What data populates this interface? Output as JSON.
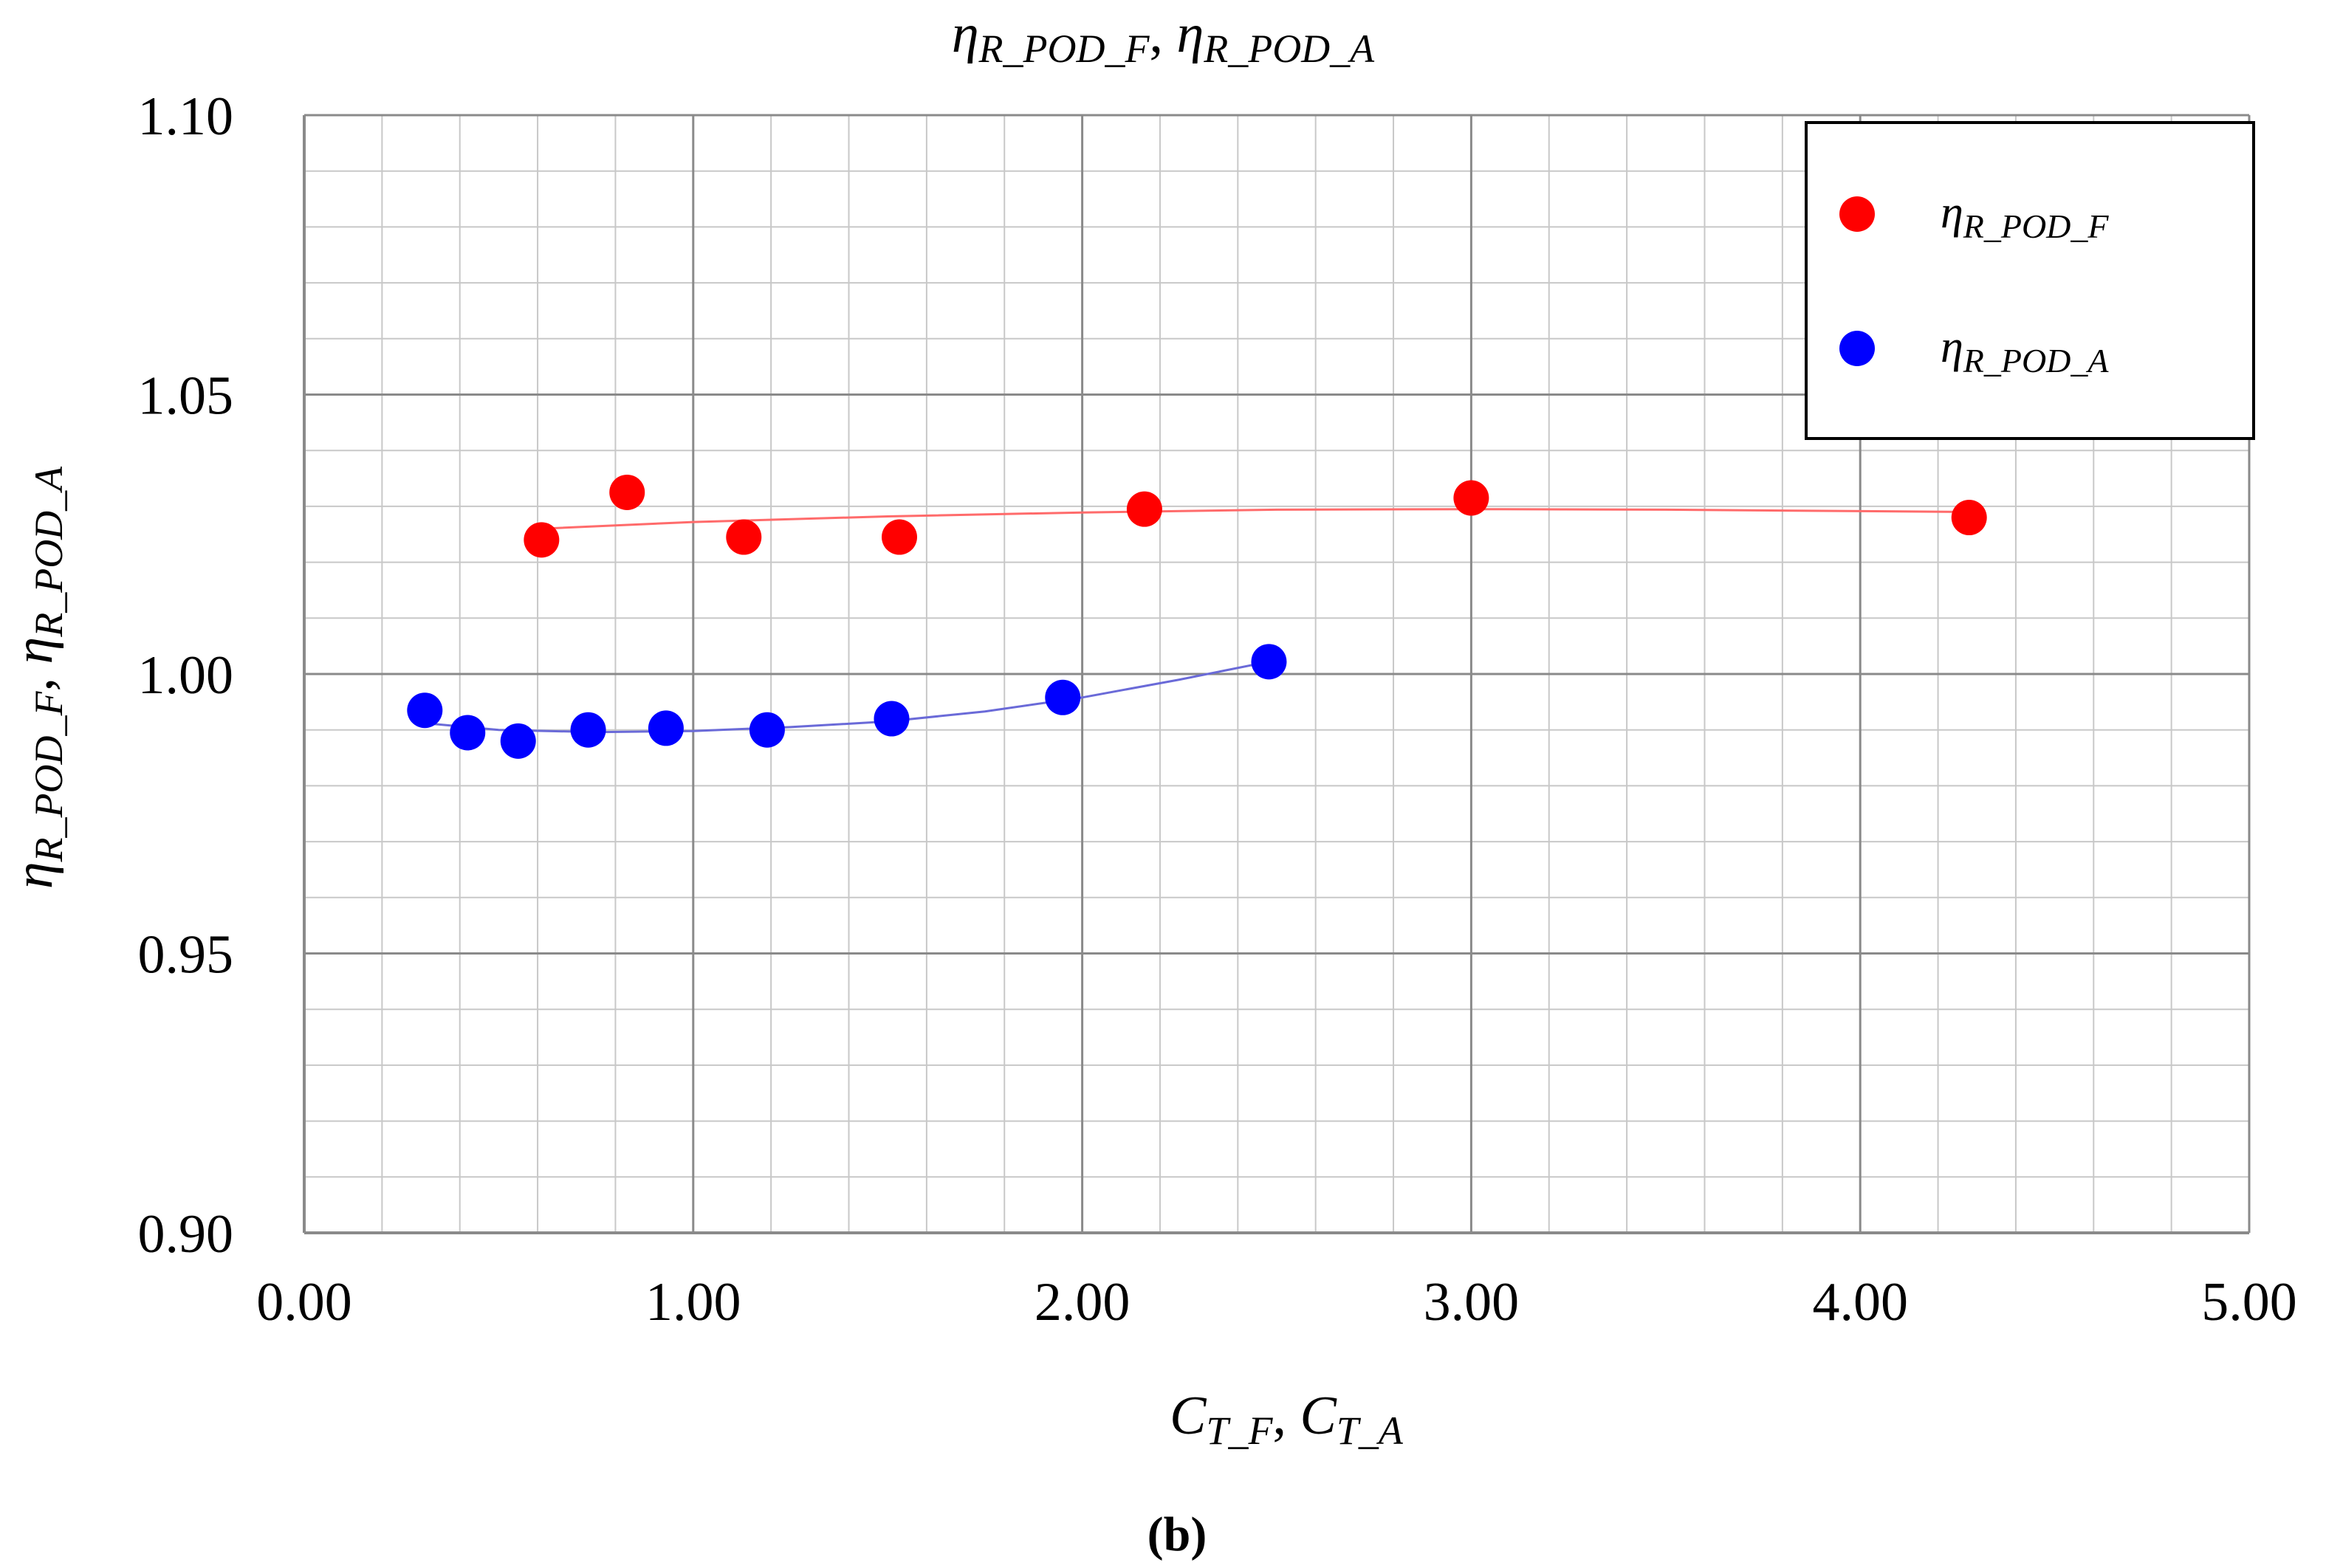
{
  "chart_data": {
    "type": "scatter",
    "title": {
      "main": "η",
      "sub": "R_POD_F",
      "sep": ", ",
      "main2": "η",
      "sub2": "R_POD_A"
    },
    "xlabel": {
      "main": "C",
      "sub": "T_F",
      "sep": ", ",
      "main2": "C",
      "sub2": "T_A"
    },
    "ylabel": {
      "main": "η",
      "sub": "R_POD_F",
      "sep": ", ",
      "main2": "η",
      "sub2": "R_POD_A"
    },
    "xlim": [
      0,
      5
    ],
    "ylim": [
      0.9,
      1.1
    ],
    "x_major_ticks": [
      0,
      1,
      2,
      3,
      4,
      5
    ],
    "x_tick_labels": [
      "0.00",
      "1.00",
      "2.00",
      "3.00",
      "4.00",
      "5.00"
    ],
    "y_major_ticks": [
      0.9,
      0.95,
      1.0,
      1.05,
      1.1
    ],
    "y_tick_labels": [
      "0.90",
      "0.95",
      "1.00",
      "1.05",
      "1.10"
    ],
    "x_minor_step": 0.2,
    "y_minor_step": 0.01,
    "grid": true,
    "legend_position": "top-right",
    "series": [
      {
        "name": "η",
        "name_sub": "R_POD_F",
        "color": "#ff0000",
        "trend_color": "#ff6b6b",
        "x": [
          0.61,
          0.83,
          1.13,
          1.53,
          2.16,
          3.0,
          4.28
        ],
        "y": [
          1.024,
          1.0325,
          1.0245,
          1.0245,
          1.0295,
          1.0315,
          1.028
        ],
        "trend_x": [
          0.61,
          1.0,
          1.5,
          2.0,
          2.5,
          3.0,
          3.5,
          4.28
        ],
        "trend_y": [
          1.026,
          1.0272,
          1.0282,
          1.0289,
          1.0294,
          1.0295,
          1.0294,
          1.029
        ]
      },
      {
        "name": "η",
        "name_sub": "R_POD_A",
        "color": "#0000ff",
        "trend_color": "#6a6ad8",
        "x": [
          0.31,
          0.42,
          0.55,
          0.73,
          0.93,
          1.19,
          1.51,
          1.95,
          2.48
        ],
        "y": [
          0.9935,
          0.9895,
          0.988,
          0.99,
          0.9903,
          0.99,
          0.992,
          0.9958,
          1.0022
        ],
        "trend_x": [
          0.31,
          0.5,
          0.75,
          1.0,
          1.25,
          1.5,
          1.75,
          2.0,
          2.25,
          2.48
        ],
        "trend_y": [
          0.9912,
          0.99,
          0.9896,
          0.9898,
          0.9905,
          0.9915,
          0.9933,
          0.9958,
          0.999,
          1.0022
        ]
      }
    ]
  },
  "caption": "(b)"
}
